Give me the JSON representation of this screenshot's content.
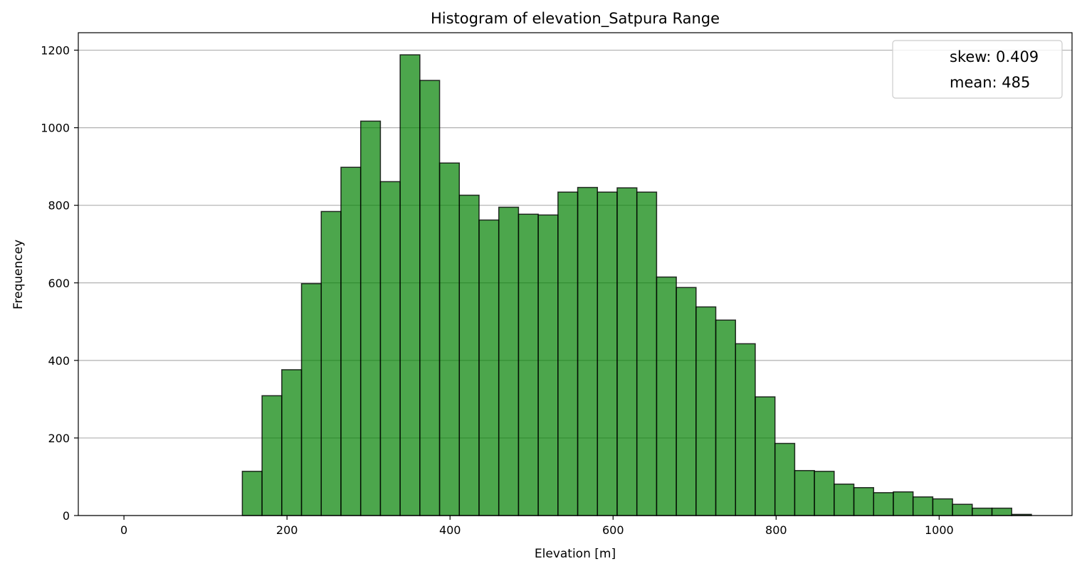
{
  "chart_data": {
    "type": "bar",
    "title": "Histogram of elevation_Satpura Range",
    "xlabel": "Elevation [m]",
    "ylabel": "Frequencey",
    "xlim": [
      -56,
      1163
    ],
    "ylim": [
      0,
      1245
    ],
    "bar_color": "#008000",
    "bar_opacity": 0.7,
    "edge_color": "#000000",
    "grid": "y",
    "legend_position": "top-right",
    "legend_entries": [
      "skew: 0.409",
      "mean: 485"
    ],
    "xticks": [
      0,
      200,
      400,
      600,
      800,
      1000
    ],
    "yticks": [
      0,
      200,
      400,
      600,
      800,
      1000,
      1200
    ],
    "bin_start": 0,
    "bin_width": 24.2,
    "values": [
      0,
      0,
      0,
      0,
      0,
      0,
      114,
      309,
      376,
      598,
      784,
      898,
      1017,
      861,
      1188,
      1122,
      909,
      826,
      762,
      795,
      777,
      775,
      834,
      846,
      834,
      845,
      834,
      615,
      588,
      538,
      504,
      443,
      306,
      186,
      116,
      114,
      81,
      72,
      59,
      61,
      48,
      43,
      29,
      19,
      19,
      3
    ]
  }
}
